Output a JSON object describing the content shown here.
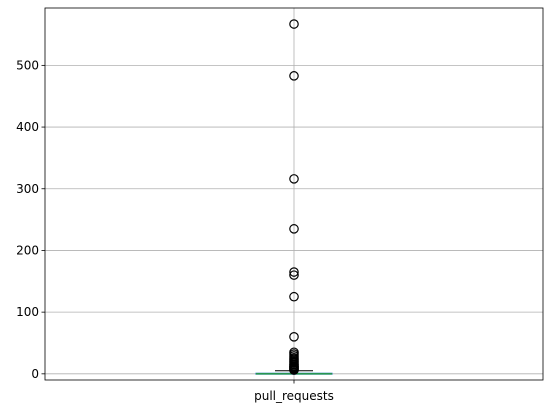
{
  "chart_data": {
    "type": "box",
    "title": "",
    "xlabel": "",
    "ylabel": "",
    "categories": [
      "pull_requests"
    ],
    "ylim": [
      -10,
      593
    ],
    "yticks": [
      0,
      100,
      200,
      300,
      400,
      500
    ],
    "ytick_labels": [
      "0",
      "100",
      "200",
      "300",
      "400",
      "500"
    ],
    "grid": true,
    "box": {
      "category": "pull_requests",
      "q1": 0,
      "median": 0,
      "q3": 1,
      "whisker_low": 0,
      "whisker_high": 5
    },
    "outliers": [
      567,
      483,
      316,
      235,
      165,
      160,
      125,
      60,
      35,
      32,
      29,
      26,
      24,
      22,
      20,
      18,
      16,
      15,
      13,
      12,
      11,
      10,
      9,
      8,
      7,
      6
    ],
    "colors": {
      "box": "#1f77b4",
      "median": "#2ca02c",
      "whisker": "#000000",
      "grid": "#b0b0b0"
    }
  }
}
